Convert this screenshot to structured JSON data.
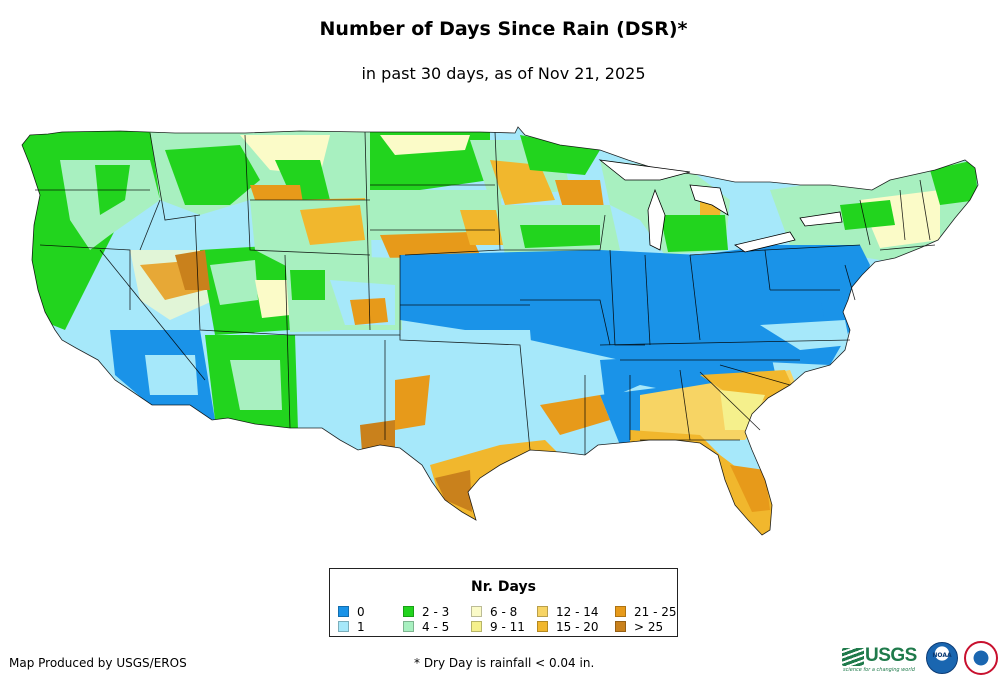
{
  "title": "Number of Days Since Rain (DSR)*",
  "subtitle": "in past 30 days, as of Nov 21, 2025",
  "legend": {
    "title": "Nr. Days",
    "items": [
      {
        "label": "0",
        "color": "#1a93e8"
      },
      {
        "label": "1",
        "color": "#a6e8fa"
      },
      {
        "label": "2 - 3",
        "color": "#22d41e"
      },
      {
        "label": "4 - 5",
        "color": "#a8f0c0"
      },
      {
        "label": "6 - 8",
        "color": "#fbfbc8"
      },
      {
        "label": "9 - 11",
        "color": "#f5f08c"
      },
      {
        "label": "12 - 14",
        "color": "#f7d464"
      },
      {
        "label": "15 - 20",
        "color": "#f1b72d"
      },
      {
        "label": "21 - 25",
        "color": "#e79a1a"
      },
      {
        "label": "> 25",
        "color": "#c9811c"
      }
    ]
  },
  "footer": {
    "producer": "Map Produced by USGS/EROS",
    "footnote": "* Dry Day is rainfall < 0.04 in."
  },
  "logos": {
    "usgs_text": "USGS",
    "usgs_tagline": "science for a changing world",
    "noaa_text": "NOAA",
    "noaa_icon": "noaa-seal-icon",
    "nws_icon": "nws-seal-icon"
  }
}
